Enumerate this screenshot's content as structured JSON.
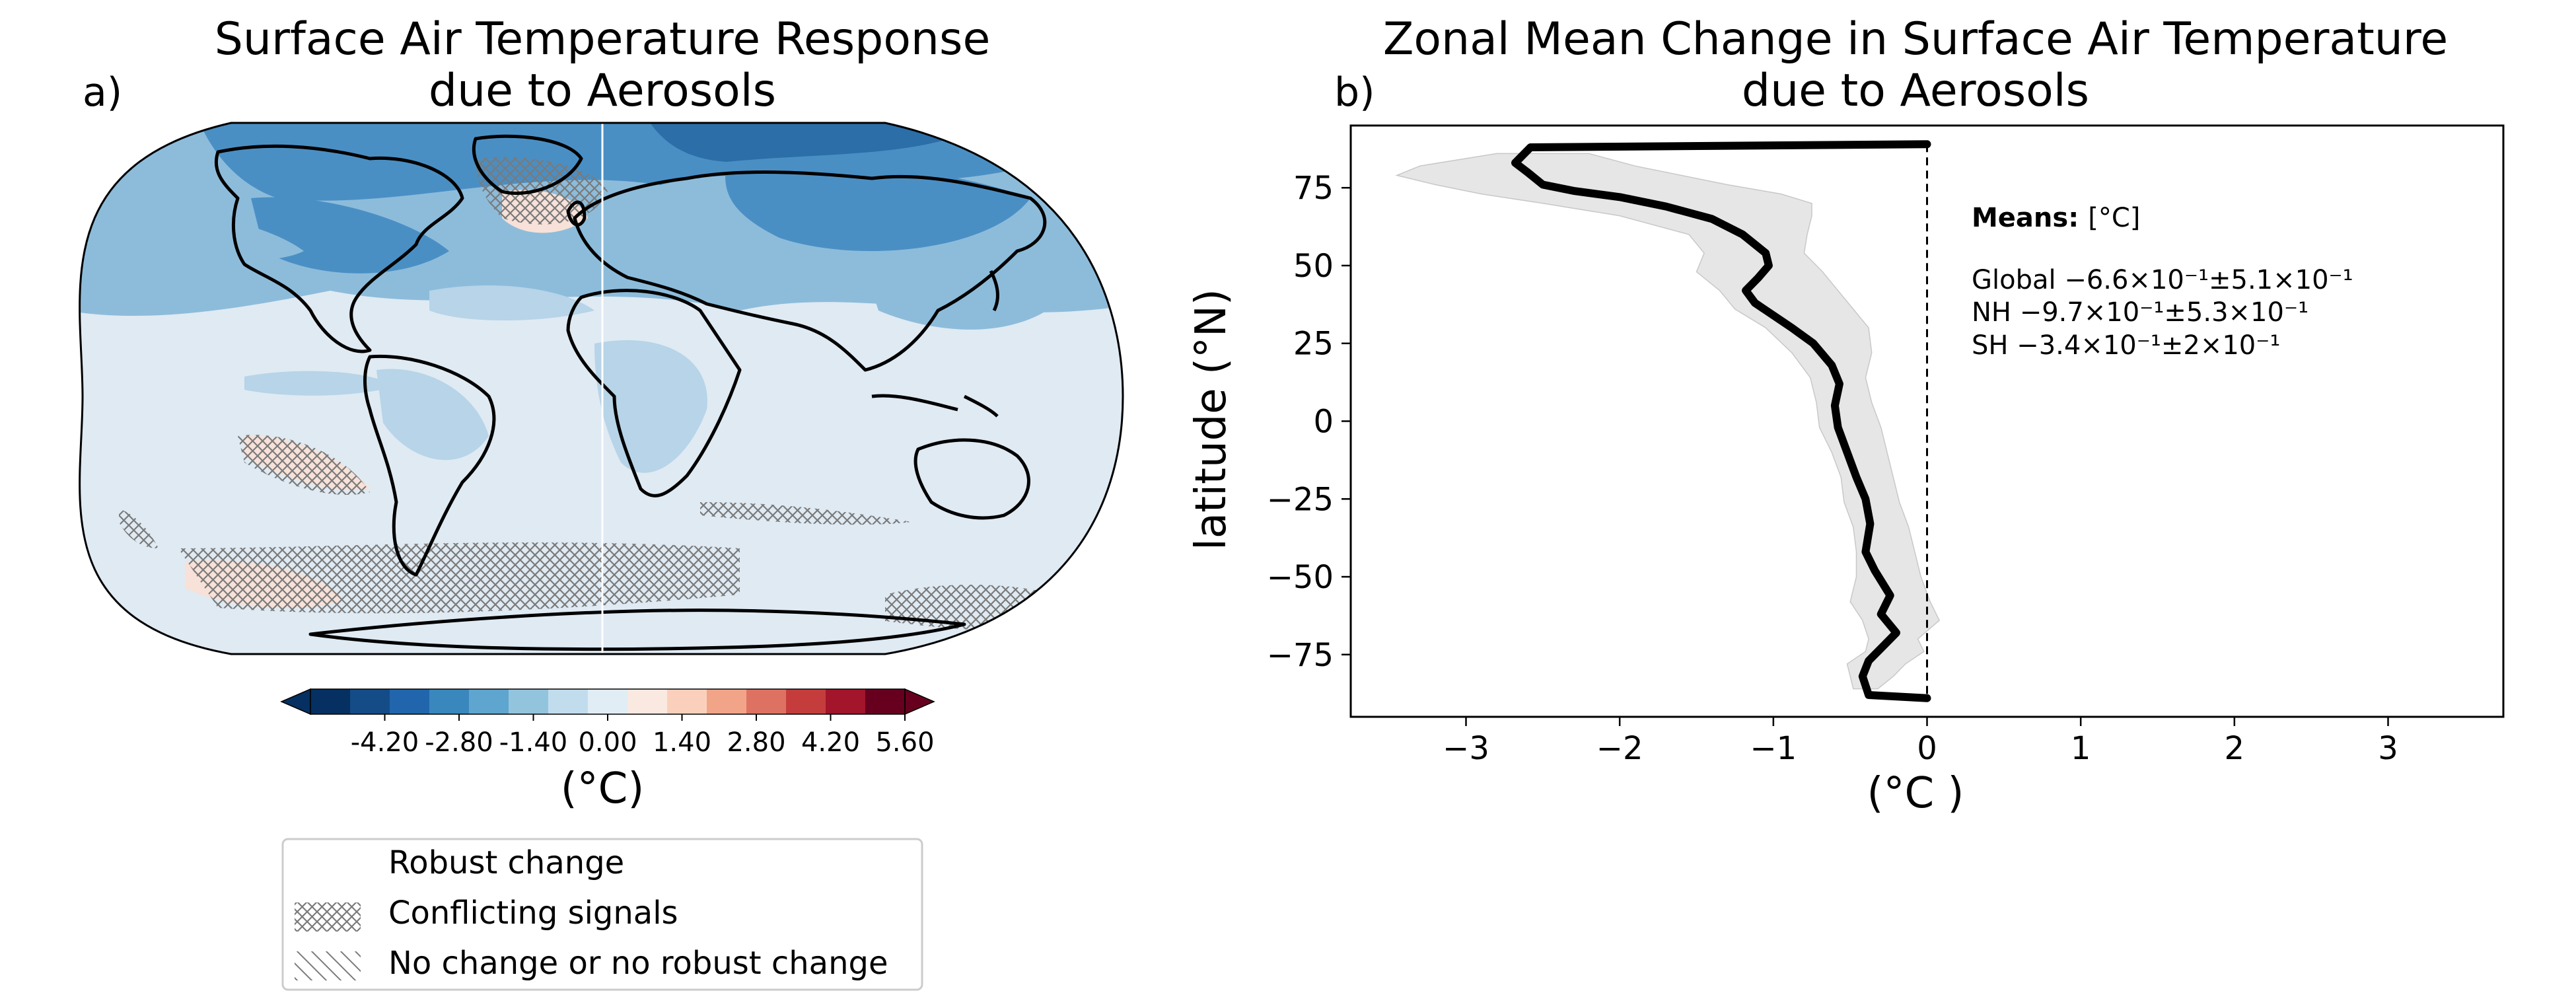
{
  "panel_a": {
    "letter": "a)",
    "title_line1": "Surface Air Temperature Response",
    "title_line2": "due to Aerosols",
    "colorbar": {
      "tick_labels": [
        "-4.20",
        "-2.80",
        "-1.40",
        "0.00",
        "1.40",
        "2.80",
        "4.20",
        "5.60"
      ],
      "unit_label": "(°C)",
      "colors": [
        "#053061",
        "#134c87",
        "#2166ac",
        "#3a87bd",
        "#5ea5cf",
        "#93c4de",
        "#c1dced",
        "#e1edf4",
        "#f9e9e1",
        "#fad0bc",
        "#f1a488",
        "#de7262",
        "#c43d3c",
        "#a2152b",
        "#67001f"
      ],
      "under_color": "#053061",
      "over_color": "#67001f"
    },
    "map_colors": {
      "ocean_base": "#dfeaf3",
      "light_blue": "#b7d4e8",
      "mid_blue": "#8dbcdb",
      "dark_blue": "#4a8fc4",
      "darker_blue": "#2b6ea8",
      "pale_red": "#f7e1d8",
      "hatch_color": "#7a7a7a"
    },
    "legend": {
      "robust": "Robust change",
      "conflicting": "Conflicting signals",
      "no_change": "No change or no robust change"
    }
  },
  "panel_b": {
    "letter": "b)",
    "title_line1": "Zonal Mean Change in Surface Air Temperature",
    "title_line2": "due to Aerosols",
    "means": {
      "header_bold": "Means:",
      "header_unit": "[°C]",
      "global": "Global −6.6×10⁻¹±5.1×10⁻¹",
      "nh": "NH −9.7×10⁻¹±5.3×10⁻¹",
      "sh": "SH −3.4×10⁻¹±2×10⁻¹"
    }
  },
  "chart_data": [
    {
      "type": "heatmap",
      "title": "Surface Air Temperature Response due to Aerosols",
      "colorbar_label": "(°C)",
      "colorbar_ticks": [
        -4.2,
        -2.8,
        -1.4,
        0.0,
        1.4,
        2.8,
        4.2,
        5.6
      ],
      "legend": [
        "Robust change",
        "Conflicting signals",
        "No change or no robust change"
      ]
    },
    {
      "type": "line",
      "title": "Zonal Mean Change in Surface Air Temperature due to Aerosols",
      "xlabel": "(°C )",
      "ylabel": "latitude (°N)",
      "xlim": [
        -3.75,
        3.75
      ],
      "ylim": [
        -95,
        95
      ],
      "xticks": [
        -3,
        -2,
        -1,
        0,
        1,
        2,
        3
      ],
      "yticks": [
        75,
        50,
        25,
        0,
        -25,
        -50,
        -75
      ],
      "grid": false,
      "series": [
        {
          "x": [
            0.0,
            -2.58,
            -2.68,
            -2.6,
            -2.5,
            -2.3,
            -2.0,
            -1.7,
            -1.4,
            -1.2,
            -1.05,
            -1.03,
            -1.1,
            -1.18,
            -1.12,
            -1.0,
            -0.88,
            -0.74,
            -0.62,
            -0.57,
            -0.6,
            -0.58,
            -0.52,
            -0.46,
            -0.4,
            -0.37,
            -0.4,
            -0.34,
            -0.24,
            -0.3,
            -0.2,
            -0.28,
            -0.38,
            -0.42,
            -0.38,
            0.0
          ],
          "y": [
            89,
            88,
            83,
            80,
            76,
            74,
            72,
            69,
            65,
            60,
            54,
            50,
            46,
            42,
            38,
            34,
            30,
            25,
            18,
            12,
            5,
            -2,
            -10,
            -18,
            -25,
            -33,
            -42,
            -48,
            -56,
            -62,
            -68,
            -72,
            -77,
            -82,
            -88,
            -89
          ]
        },
        {
          "lower": [
            -2.8,
            -3.3,
            -3.45,
            -3.2,
            -2.9,
            -2.5,
            -2.0,
            -1.55,
            -1.45,
            -1.5,
            -1.35,
            -1.25,
            -1.05,
            -0.88,
            -0.76,
            -0.72,
            -0.7,
            -0.62,
            -0.56,
            -0.54,
            -0.48,
            -0.46,
            -0.46,
            -0.5,
            -0.42,
            -0.38,
            -0.4,
            -0.52,
            -0.5,
            -0.48
          ],
          "upper": [
            -2.2,
            -1.9,
            -1.6,
            -1.3,
            -0.95,
            -0.75,
            -0.75,
            -0.78,
            -0.8,
            -0.68,
            -0.58,
            -0.48,
            -0.38,
            -0.36,
            -0.4,
            -0.36,
            -0.3,
            -0.26,
            -0.22,
            -0.18,
            -0.12,
            -0.08,
            -0.04,
            0.02,
            0.08,
            -0.06,
            -0.02,
            -0.14,
            -0.22,
            -0.32
          ],
          "y": [
            86,
            82,
            79,
            76,
            73,
            70,
            66,
            60,
            54,
            48,
            42,
            36,
            30,
            22,
            14,
            6,
            -2,
            -10,
            -18,
            -26,
            -34,
            -42,
            -50,
            -58,
            -64,
            -70,
            -74,
            -78,
            -82,
            -86
          ]
        }
      ]
    }
  ]
}
